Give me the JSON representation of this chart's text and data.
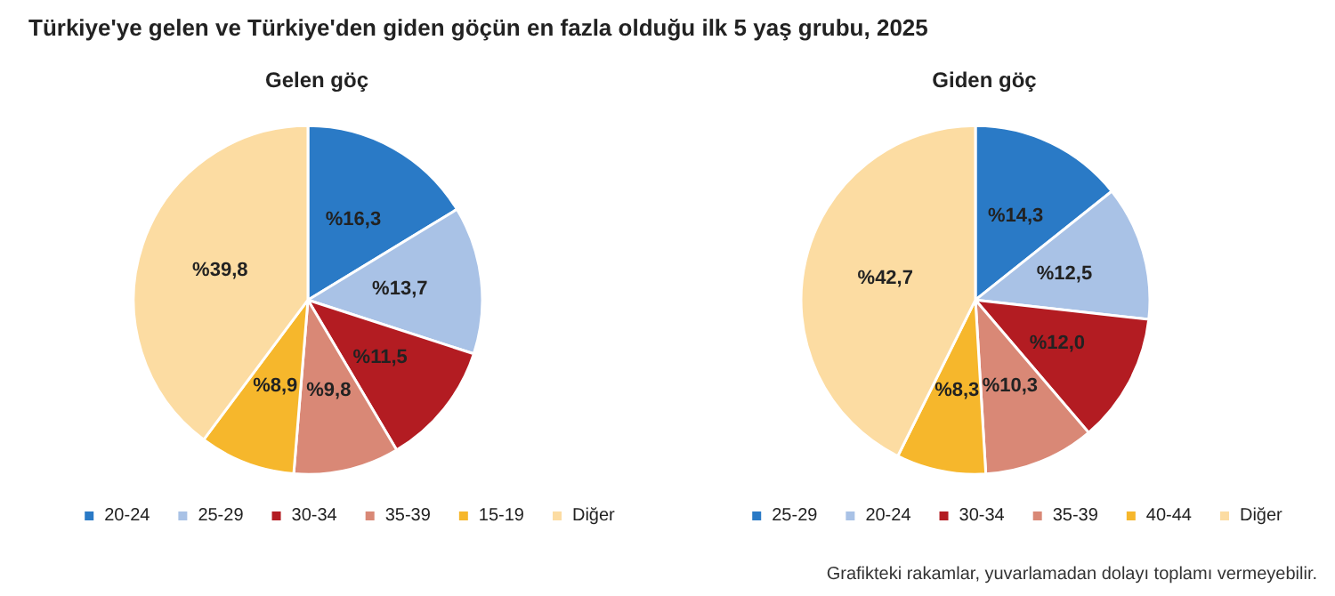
{
  "chart_data": [
    {
      "type": "pie",
      "title": "Türkiye'ye gelen ve Türkiye'den giden göçün en fazla olduğu ilk 5 yaş grubu, 2025",
      "subtitle": "Gelen göç",
      "categories": [
        "20-24",
        "25-29",
        "30-34",
        "35-39",
        "15-19",
        "Diğer"
      ],
      "values": [
        16.3,
        13.7,
        11.5,
        9.8,
        8.9,
        39.8
      ],
      "value_labels": [
        "%16,3",
        "%13,7",
        "%11,5",
        "%9,8",
        "%8,9",
        "%39,8"
      ],
      "colors": [
        "#2a7ac6",
        "#a9c2e6",
        "#b31c22",
        "#d98876",
        "#f6b72c",
        "#fcdca2"
      ],
      "legend": "bottom"
    },
    {
      "type": "pie",
      "title": "Giden göç",
      "categories": [
        "25-29",
        "20-24",
        "30-34",
        "35-39",
        "40-44",
        "Diğer"
      ],
      "values": [
        14.3,
        12.5,
        12.0,
        10.3,
        8.3,
        42.7
      ],
      "value_labels": [
        "%14,3",
        "%12,5",
        "%12,0",
        "%10,3",
        "%8,3",
        "%42,7"
      ],
      "colors": [
        "#2a7ac6",
        "#a9c2e6",
        "#b31c22",
        "#d98876",
        "#f6b72c",
        "#fcdca2"
      ],
      "legend": "bottom",
      "annotations": [
        "Grafikteki rakamlar, yuvarlamadan dolayı toplamı vermeyebilir."
      ]
    }
  ]
}
